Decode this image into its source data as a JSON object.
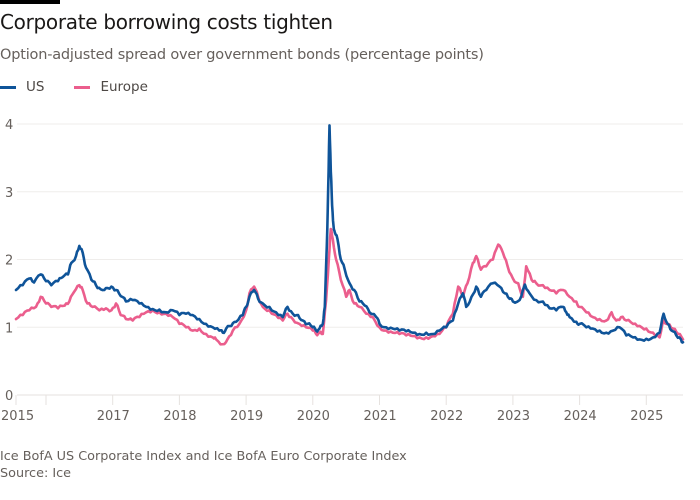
{
  "title": "Corporate borrowing costs tighten",
  "subtitle": "Option-adjusted spread over government bonds (percentage points)",
  "legend": [
    {
      "name": "US",
      "color": "#0f5499"
    },
    {
      "name": "Europe",
      "color": "#eb5e8d"
    }
  ],
  "footer": {
    "note": "Ice BofA US Corporate Index and Ice BofA Euro Corporate Index",
    "source": "Source: Ice"
  },
  "chart_data": {
    "type": "line",
    "title": "Corporate borrowing costs tighten",
    "subtitle": "Option-adjusted spread over government bonds (percentage points)",
    "xlabel": "",
    "ylabel": "",
    "xlim": [
      2015.55,
      2025.55
    ],
    "ylim": [
      0,
      4
    ],
    "yticks": [
      0,
      1,
      2,
      3,
      4
    ],
    "xticks": [
      {
        "value": 2015.55,
        "label": "2015"
      },
      {
        "value": 2016,
        "label": ""
      },
      {
        "value": 2017,
        "label": "2017"
      },
      {
        "value": 2018,
        "label": "2018"
      },
      {
        "value": 2019,
        "label": "2019"
      },
      {
        "value": 2020,
        "label": "2020"
      },
      {
        "value": 2021,
        "label": "2021"
      },
      {
        "value": 2022,
        "label": "2022"
      },
      {
        "value": 2023,
        "label": "2023"
      },
      {
        "value": 2024,
        "label": "2024"
      },
      {
        "value": 2025,
        "label": "2025"
      }
    ],
    "grid": true,
    "legend_position": "top-left",
    "series": [
      {
        "name": "US",
        "color": "#0f5499",
        "points": [
          [
            2015.55,
            1.55
          ],
          [
            2015.65,
            1.62
          ],
          [
            2015.75,
            1.72
          ],
          [
            2015.82,
            1.66
          ],
          [
            2015.92,
            1.78
          ],
          [
            2016.0,
            1.68
          ],
          [
            2016.08,
            1.62
          ],
          [
            2016.18,
            1.68
          ],
          [
            2016.25,
            1.74
          ],
          [
            2016.33,
            1.78
          ],
          [
            2016.38,
            1.95
          ],
          [
            2016.45,
            2.05
          ],
          [
            2016.5,
            2.2
          ],
          [
            2016.55,
            2.1
          ],
          [
            2016.6,
            1.88
          ],
          [
            2016.68,
            1.7
          ],
          [
            2016.75,
            1.62
          ],
          [
            2016.82,
            1.56
          ],
          [
            2016.9,
            1.58
          ],
          [
            2016.98,
            1.6
          ],
          [
            2017.05,
            1.55
          ],
          [
            2017.12,
            1.46
          ],
          [
            2017.2,
            1.38
          ],
          [
            2017.3,
            1.4
          ],
          [
            2017.4,
            1.35
          ],
          [
            2017.5,
            1.3
          ],
          [
            2017.6,
            1.27
          ],
          [
            2017.7,
            1.26
          ],
          [
            2017.8,
            1.22
          ],
          [
            2017.9,
            1.25
          ],
          [
            2018.0,
            1.18
          ],
          [
            2018.1,
            1.2
          ],
          [
            2018.2,
            1.18
          ],
          [
            2018.3,
            1.12
          ],
          [
            2018.4,
            1.05
          ],
          [
            2018.5,
            1.0
          ],
          [
            2018.6,
            0.95
          ],
          [
            2018.65,
            0.92
          ],
          [
            2018.7,
            0.98
          ],
          [
            2018.78,
            1.02
          ],
          [
            2018.85,
            1.08
          ],
          [
            2018.95,
            1.18
          ],
          [
            2019.0,
            1.3
          ],
          [
            2019.05,
            1.45
          ],
          [
            2019.12,
            1.55
          ],
          [
            2019.18,
            1.42
          ],
          [
            2019.25,
            1.35
          ],
          [
            2019.35,
            1.3
          ],
          [
            2019.45,
            1.22
          ],
          [
            2019.55,
            1.15
          ],
          [
            2019.62,
            1.3
          ],
          [
            2019.7,
            1.2
          ],
          [
            2019.78,
            1.18
          ],
          [
            2019.85,
            1.1
          ],
          [
            2019.92,
            1.05
          ],
          [
            2020.0,
            1.0
          ],
          [
            2020.05,
            0.95
          ],
          [
            2020.1,
            0.98
          ],
          [
            2020.15,
            1.05
          ],
          [
            2020.18,
            1.3
          ],
          [
            2020.21,
            2.2
          ],
          [
            2020.23,
            3.0
          ],
          [
            2020.25,
            3.98
          ],
          [
            2020.27,
            3.3
          ],
          [
            2020.29,
            2.8
          ],
          [
            2020.31,
            2.5
          ],
          [
            2020.33,
            2.4
          ],
          [
            2020.37,
            2.3
          ],
          [
            2020.42,
            2.0
          ],
          [
            2020.48,
            1.85
          ],
          [
            2020.55,
            1.65
          ],
          [
            2020.62,
            1.55
          ],
          [
            2020.7,
            1.38
          ],
          [
            2020.78,
            1.32
          ],
          [
            2020.85,
            1.22
          ],
          [
            2020.95,
            1.15
          ],
          [
            2021.0,
            1.05
          ],
          [
            2021.1,
            1.0
          ],
          [
            2021.2,
            0.98
          ],
          [
            2021.3,
            0.95
          ],
          [
            2021.4,
            0.94
          ],
          [
            2021.5,
            0.92
          ],
          [
            2021.6,
            0.9
          ],
          [
            2021.7,
            0.92
          ],
          [
            2021.8,
            0.9
          ],
          [
            2021.9,
            0.95
          ],
          [
            2022.0,
            1.0
          ],
          [
            2022.1,
            1.1
          ],
          [
            2022.18,
            1.35
          ],
          [
            2022.25,
            1.5
          ],
          [
            2022.3,
            1.3
          ],
          [
            2022.38,
            1.45
          ],
          [
            2022.45,
            1.6
          ],
          [
            2022.52,
            1.45
          ],
          [
            2022.6,
            1.55
          ],
          [
            2022.7,
            1.65
          ],
          [
            2022.8,
            1.6
          ],
          [
            2022.88,
            1.5
          ],
          [
            2022.95,
            1.42
          ],
          [
            2023.0,
            1.38
          ],
          [
            2023.1,
            1.4
          ],
          [
            2023.18,
            1.63
          ],
          [
            2023.25,
            1.5
          ],
          [
            2023.35,
            1.4
          ],
          [
            2023.45,
            1.38
          ],
          [
            2023.55,
            1.28
          ],
          [
            2023.65,
            1.25
          ],
          [
            2023.75,
            1.3
          ],
          [
            2023.8,
            1.22
          ],
          [
            2023.85,
            1.15
          ],
          [
            2023.95,
            1.08
          ],
          [
            2024.0,
            1.05
          ],
          [
            2024.1,
            1.0
          ],
          [
            2024.2,
            0.98
          ],
          [
            2024.3,
            0.95
          ],
          [
            2024.4,
            0.92
          ],
          [
            2024.5,
            0.95
          ],
          [
            2024.6,
            1.0
          ],
          [
            2024.7,
            0.88
          ],
          [
            2024.8,
            0.85
          ],
          [
            2024.9,
            0.82
          ],
          [
            2025.0,
            0.83
          ],
          [
            2025.1,
            0.85
          ],
          [
            2025.2,
            0.92
          ],
          [
            2025.26,
            1.2
          ],
          [
            2025.32,
            1.05
          ],
          [
            2025.38,
            0.95
          ],
          [
            2025.45,
            0.88
          ],
          [
            2025.52,
            0.82
          ],
          [
            2025.55,
            0.78
          ]
        ]
      },
      {
        "name": "Europe",
        "color": "#eb5e8d",
        "points": [
          [
            2015.55,
            1.12
          ],
          [
            2015.65,
            1.18
          ],
          [
            2015.75,
            1.25
          ],
          [
            2015.85,
            1.3
          ],
          [
            2015.92,
            1.45
          ],
          [
            2016.0,
            1.35
          ],
          [
            2016.08,
            1.3
          ],
          [
            2016.18,
            1.28
          ],
          [
            2016.28,
            1.32
          ],
          [
            2016.35,
            1.38
          ],
          [
            2016.42,
            1.52
          ],
          [
            2016.5,
            1.62
          ],
          [
            2016.55,
            1.55
          ],
          [
            2016.62,
            1.35
          ],
          [
            2016.7,
            1.3
          ],
          [
            2016.8,
            1.25
          ],
          [
            2016.9,
            1.28
          ],
          [
            2016.98,
            1.25
          ],
          [
            2017.05,
            1.35
          ],
          [
            2017.12,
            1.18
          ],
          [
            2017.2,
            1.12
          ],
          [
            2017.3,
            1.1
          ],
          [
            2017.4,
            1.15
          ],
          [
            2017.5,
            1.22
          ],
          [
            2017.6,
            1.25
          ],
          [
            2017.7,
            1.22
          ],
          [
            2017.8,
            1.2
          ],
          [
            2017.9,
            1.15
          ],
          [
            2018.0,
            1.05
          ],
          [
            2018.1,
            1.0
          ],
          [
            2018.2,
            0.95
          ],
          [
            2018.3,
            0.98
          ],
          [
            2018.4,
            0.9
          ],
          [
            2018.5,
            0.85
          ],
          [
            2018.55,
            0.82
          ],
          [
            2018.65,
            0.75
          ],
          [
            2018.72,
            0.82
          ],
          [
            2018.8,
            0.95
          ],
          [
            2018.9,
            1.05
          ],
          [
            2019.0,
            1.25
          ],
          [
            2019.05,
            1.5
          ],
          [
            2019.12,
            1.6
          ],
          [
            2019.18,
            1.45
          ],
          [
            2019.25,
            1.3
          ],
          [
            2019.35,
            1.25
          ],
          [
            2019.45,
            1.18
          ],
          [
            2019.55,
            1.1
          ],
          [
            2019.62,
            1.2
          ],
          [
            2019.7,
            1.12
          ],
          [
            2019.8,
            1.05
          ],
          [
            2019.9,
            1.0
          ],
          [
            2020.0,
            0.95
          ],
          [
            2020.05,
            0.9
          ],
          [
            2020.1,
            0.92
          ],
          [
            2020.15,
            0.9
          ],
          [
            2020.2,
            1.4
          ],
          [
            2020.24,
            2.0
          ],
          [
            2020.27,
            2.45
          ],
          [
            2020.3,
            2.3
          ],
          [
            2020.35,
            2.0
          ],
          [
            2020.42,
            1.7
          ],
          [
            2020.5,
            1.45
          ],
          [
            2020.55,
            1.55
          ],
          [
            2020.62,
            1.35
          ],
          [
            2020.7,
            1.3
          ],
          [
            2020.8,
            1.2
          ],
          [
            2020.9,
            1.15
          ],
          [
            2021.0,
            1.0
          ],
          [
            2021.1,
            0.95
          ],
          [
            2021.2,
            0.92
          ],
          [
            2021.3,
            0.9
          ],
          [
            2021.4,
            0.88
          ],
          [
            2021.5,
            0.87
          ],
          [
            2021.6,
            0.85
          ],
          [
            2021.7,
            0.85
          ],
          [
            2021.8,
            0.87
          ],
          [
            2021.9,
            0.9
          ],
          [
            2022.0,
            1.0
          ],
          [
            2022.1,
            1.2
          ],
          [
            2022.18,
            1.6
          ],
          [
            2022.25,
            1.45
          ],
          [
            2022.32,
            1.65
          ],
          [
            2022.4,
            1.95
          ],
          [
            2022.45,
            2.05
          ],
          [
            2022.52,
            1.85
          ],
          [
            2022.6,
            1.9
          ],
          [
            2022.7,
            2.0
          ],
          [
            2022.78,
            2.22
          ],
          [
            2022.85,
            2.1
          ],
          [
            2022.92,
            1.9
          ],
          [
            2023.0,
            1.72
          ],
          [
            2023.08,
            1.65
          ],
          [
            2023.15,
            1.45
          ],
          [
            2023.2,
            1.9
          ],
          [
            2023.28,
            1.7
          ],
          [
            2023.35,
            1.65
          ],
          [
            2023.45,
            1.62
          ],
          [
            2023.55,
            1.55
          ],
          [
            2023.65,
            1.5
          ],
          [
            2023.75,
            1.55
          ],
          [
            2023.85,
            1.45
          ],
          [
            2023.95,
            1.38
          ],
          [
            2024.0,
            1.3
          ],
          [
            2024.1,
            1.22
          ],
          [
            2024.2,
            1.15
          ],
          [
            2024.3,
            1.12
          ],
          [
            2024.4,
            1.1
          ],
          [
            2024.48,
            1.22
          ],
          [
            2024.55,
            1.1
          ],
          [
            2024.62,
            1.15
          ],
          [
            2024.7,
            1.1
          ],
          [
            2024.8,
            1.05
          ],
          [
            2024.9,
            1.02
          ],
          [
            2025.0,
            0.98
          ],
          [
            2025.1,
            0.92
          ],
          [
            2025.2,
            0.85
          ],
          [
            2025.26,
            1.1
          ],
          [
            2025.32,
            1.05
          ],
          [
            2025.4,
            0.98
          ],
          [
            2025.48,
            0.9
          ],
          [
            2025.55,
            0.82
          ]
        ]
      }
    ]
  }
}
